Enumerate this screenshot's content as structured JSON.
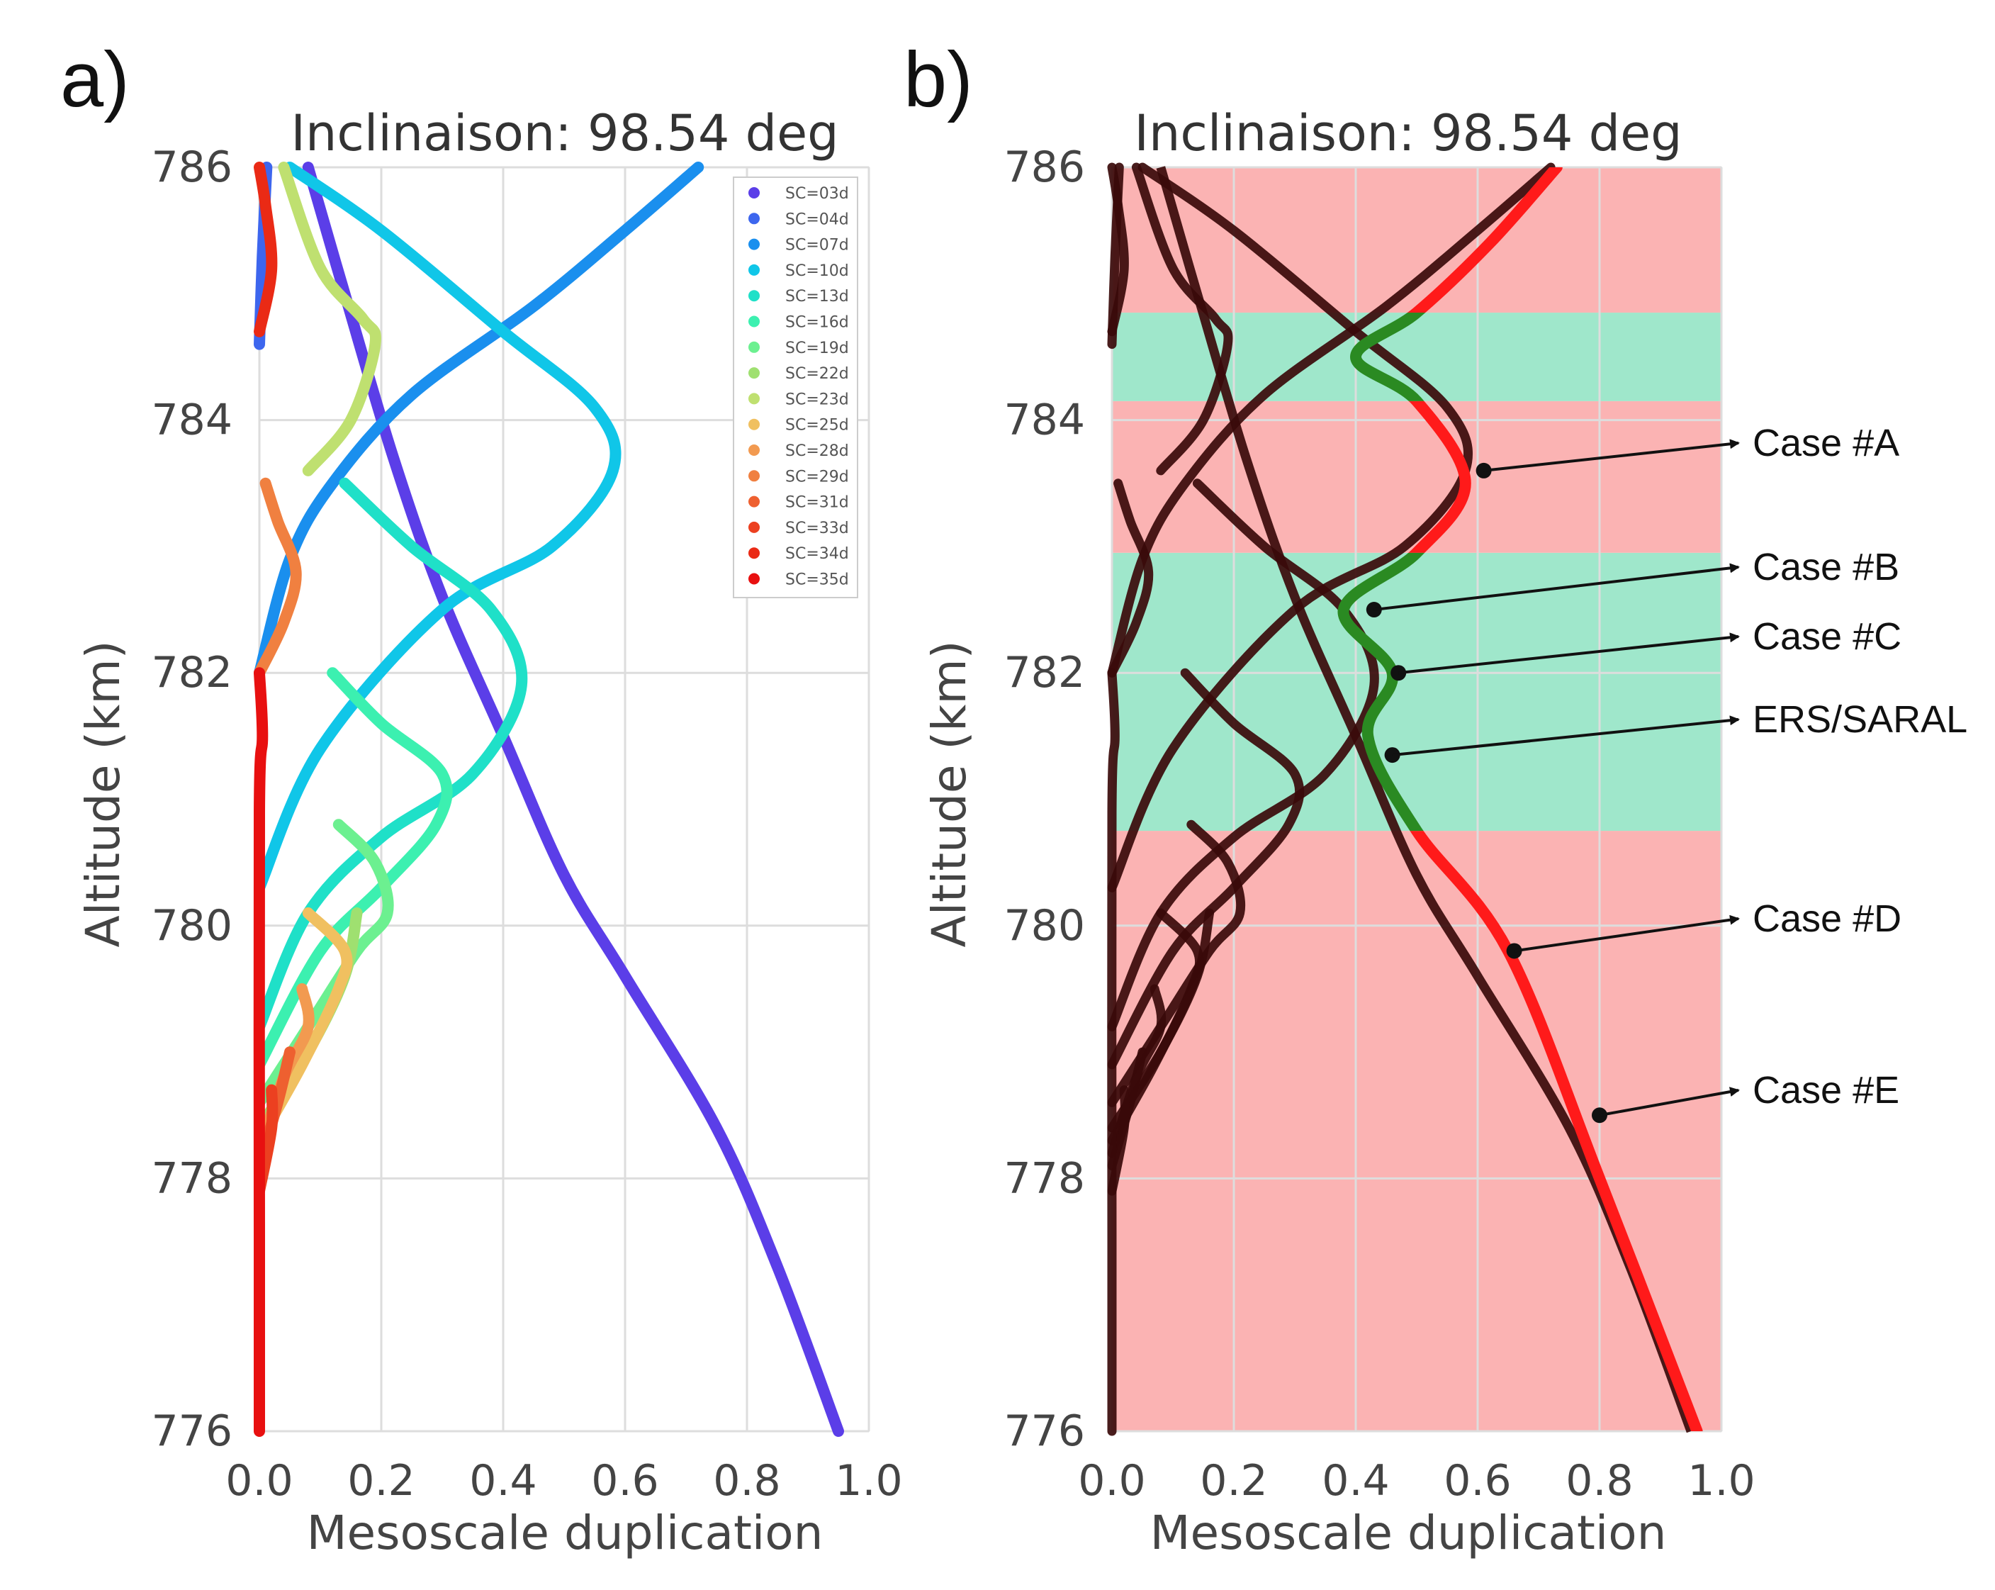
{
  "panel_labels": [
    "a)",
    "b)"
  ],
  "colors": {
    "band_red": "#fbb3b3",
    "band_green": "#9fe7cb",
    "dark_curve": "#3a0a0a",
    "dark_green_curve": "#0d4020",
    "highlight_red": "#ff1a1a",
    "highlight_green": "#2a8a22",
    "grid": "#dddddd"
  },
  "chart_data": [
    {
      "id": "a",
      "type": "line",
      "title": "Inclinaison: 98.54 deg",
      "xlabel": "Mesoscale duplication",
      "ylabel": "Altitude (km)",
      "xlim": [
        0.0,
        1.0
      ],
      "ylim": [
        776,
        786
      ],
      "xticks": [
        "0.0",
        "0.2",
        "0.4",
        "0.6",
        "0.8",
        "1.0"
      ],
      "yticks": [
        "776",
        "778",
        "780",
        "782",
        "784",
        "786"
      ],
      "grid": true,
      "legend_position": "top-right",
      "series": [
        {
          "name": "SC=03d",
          "color": "#5b3ee8",
          "points": [
            [
              0.95,
              776
            ],
            [
              0.85,
              777.3
            ],
            [
              0.75,
              778.4
            ],
            [
              0.6,
              779.6
            ],
            [
              0.5,
              780.4
            ],
            [
              0.4,
              781.5
            ],
            [
              0.3,
              782.6
            ],
            [
              0.22,
              783.7
            ],
            [
              0.14,
              785.0
            ],
            [
              0.08,
              786
            ]
          ]
        },
        {
          "name": "SC=04d",
          "color": "#3d66ee",
          "points": [
            [
              0.0,
              784.6
            ],
            [
              0.005,
              785.3
            ],
            [
              0.012,
              786
            ]
          ]
        },
        {
          "name": "SC=07d",
          "color": "#1a8fee",
          "points": [
            [
              0.0,
              782.0
            ],
            [
              0.05,
              782.9
            ],
            [
              0.12,
              783.5
            ],
            [
              0.25,
              784.2
            ],
            [
              0.45,
              784.9
            ],
            [
              0.6,
              785.5
            ],
            [
              0.72,
              786
            ]
          ]
        },
        {
          "name": "SC=10d",
          "color": "#10c6e8",
          "points": [
            [
              0.0,
              780.3
            ],
            [
              0.1,
              781.4
            ],
            [
              0.3,
              782.5
            ],
            [
              0.48,
              783.0
            ],
            [
              0.58,
              783.6
            ],
            [
              0.55,
              784.1
            ],
            [
              0.4,
              784.7
            ],
            [
              0.2,
              785.5
            ],
            [
              0.05,
              786
            ]
          ]
        },
        {
          "name": "SC=13d",
          "color": "#1fe0c8",
          "points": [
            [
              0.0,
              779.2
            ],
            [
              0.08,
              780.1
            ],
            [
              0.2,
              780.7
            ],
            [
              0.35,
              781.2
            ],
            [
              0.43,
              781.9
            ],
            [
              0.38,
              782.5
            ],
            [
              0.25,
              783.0
            ],
            [
              0.14,
              783.5
            ]
          ]
        },
        {
          "name": "SC=16d",
          "color": "#3cf0b0",
          "points": [
            [
              0.0,
              778.9
            ],
            [
              0.1,
              779.8
            ],
            [
              0.2,
              780.3
            ],
            [
              0.29,
              780.8
            ],
            [
              0.3,
              781.2
            ],
            [
              0.2,
              781.6
            ],
            [
              0.12,
              782.0
            ]
          ]
        },
        {
          "name": "SC=19d",
          "color": "#6cf090",
          "points": [
            [
              0.0,
              778.6
            ],
            [
              0.08,
              779.2
            ],
            [
              0.16,
              779.8
            ],
            [
              0.21,
              780.1
            ],
            [
              0.19,
              780.5
            ],
            [
              0.13,
              780.8
            ]
          ]
        },
        {
          "name": "SC=22d",
          "color": "#9fe070",
          "points": [
            [
              0.0,
              778.4
            ],
            [
              0.08,
              779.0
            ],
            [
              0.14,
              779.6
            ],
            [
              0.16,
              780.1
            ]
          ]
        },
        {
          "name": "SC=23d",
          "color": "#bfe070",
          "points": [
            [
              0.04,
              786
            ],
            [
              0.1,
              785.2
            ],
            [
              0.17,
              784.8
            ],
            [
              0.19,
              784.6
            ],
            [
              0.15,
              784.0
            ],
            [
              0.08,
              783.6
            ]
          ]
        },
        {
          "name": "SC=25d",
          "color": "#f0c060",
          "points": [
            [
              0.0,
              778.3
            ],
            [
              0.07,
              778.9
            ],
            [
              0.13,
              779.5
            ],
            [
              0.14,
              779.8
            ],
            [
              0.08,
              780.1
            ]
          ]
        },
        {
          "name": "SC=28d",
          "color": "#f29a50",
          "points": [
            [
              0.0,
              778.2
            ],
            [
              0.04,
              778.8
            ],
            [
              0.08,
              779.2
            ],
            [
              0.07,
              779.5
            ]
          ]
        },
        {
          "name": "SC=29d",
          "color": "#f08040",
          "points": [
            [
              0.0,
              782.0
            ],
            [
              0.04,
              782.4
            ],
            [
              0.06,
              782.8
            ],
            [
              0.03,
              783.2
            ],
            [
              0.01,
              783.5
            ]
          ]
        },
        {
          "name": "SC=31d",
          "color": "#ee6030",
          "points": [
            [
              0.0,
              778.1
            ],
            [
              0.03,
              778.6
            ],
            [
              0.05,
              779.0
            ]
          ]
        },
        {
          "name": "SC=33d",
          "color": "#ec4020",
          "points": [
            [
              0.0,
              777.9
            ],
            [
              0.02,
              778.4
            ],
            [
              0.02,
              778.7
            ]
          ]
        },
        {
          "name": "SC=34d",
          "color": "#ea2a15",
          "points": [
            [
              0.0,
              784.7
            ],
            [
              0.02,
              785.2
            ],
            [
              0.01,
              785.7
            ],
            [
              0.0,
              786
            ]
          ]
        },
        {
          "name": "SC=35d",
          "color": "#e81010",
          "points": [
            [
              0.0,
              776
            ],
            [
              0.0,
              777.5
            ],
            [
              0.0,
              780.9
            ],
            [
              0.005,
              781.5
            ],
            [
              0.0,
              782.0
            ]
          ]
        }
      ]
    },
    {
      "id": "b",
      "type": "line",
      "title": "Inclinaison: 98.54 deg",
      "xlabel": "Mesoscale duplication",
      "ylabel": "Altitude (km)",
      "xlim": [
        0.0,
        1.0
      ],
      "ylim": [
        776,
        786
      ],
      "xticks": [
        "0.0",
        "0.2",
        "0.4",
        "0.6",
        "0.8",
        "1.0"
      ],
      "yticks": [
        "776",
        "778",
        "780",
        "782",
        "784",
        "786"
      ],
      "grid": true,
      "bands": [
        {
          "from": 776,
          "to": 780.75,
          "color": "red"
        },
        {
          "from": 780.75,
          "to": 782.95,
          "color": "green"
        },
        {
          "from": 782.95,
          "to": 784.15,
          "color": "red"
        },
        {
          "from": 784.15,
          "to": 784.85,
          "color": "green"
        },
        {
          "from": 784.85,
          "to": 786,
          "color": "red"
        }
      ],
      "envelope": [
        [
          0.96,
          776
        ],
        [
          0.8,
          778.0
        ],
        [
          0.65,
          779.8
        ],
        [
          0.5,
          780.75
        ],
        [
          0.42,
          781.5
        ],
        [
          0.46,
          782.0
        ],
        [
          0.38,
          782.5
        ],
        [
          0.5,
          782.95
        ],
        [
          0.58,
          783.5
        ],
        [
          0.5,
          784.15
        ],
        [
          0.4,
          784.5
        ],
        [
          0.5,
          784.85
        ],
        [
          0.62,
          785.4
        ],
        [
          0.73,
          786
        ]
      ],
      "annotations": [
        {
          "label": "Case #A",
          "x": 0.61,
          "y": 783.6
        },
        {
          "label": "Case #B",
          "x": 0.43,
          "y": 782.5
        },
        {
          "label": "Case #C",
          "x": 0.47,
          "y": 782.0
        },
        {
          "label": "ERS/SARAL",
          "x": 0.46,
          "y": 781.35
        },
        {
          "label": "Case #D",
          "x": 0.66,
          "y": 779.8
        },
        {
          "label": "Case #E",
          "x": 0.8,
          "y": 778.5
        }
      ]
    }
  ]
}
